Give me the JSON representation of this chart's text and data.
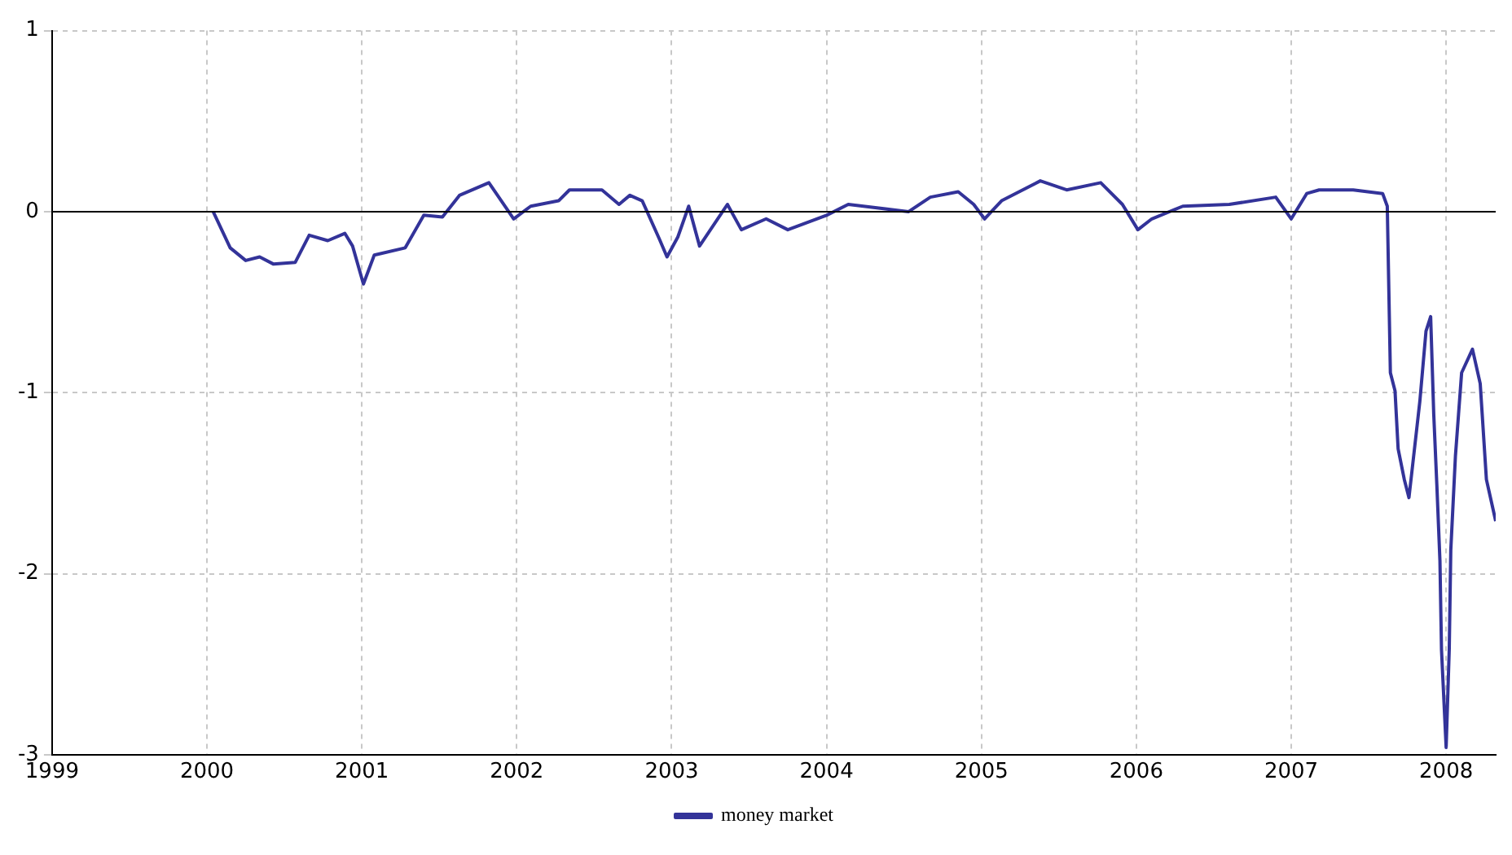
{
  "chart_data": {
    "type": "line",
    "xlim": [
      1999,
      2008.32
    ],
    "xticks": [
      1999,
      2000,
      2001,
      2002,
      2003,
      2004,
      2005,
      2006,
      2007,
      2008
    ],
    "ylim": [
      -3,
      1
    ],
    "yticks": [
      -3,
      -2,
      -1,
      0,
      1
    ],
    "grid": true,
    "legend": "bottom",
    "marker": "none",
    "line_style": "solid",
    "ref_lines": [
      {
        "axis": "y",
        "value": 0,
        "color": "#000000"
      }
    ],
    "series": [
      {
        "name": "money market",
        "color": "#333399",
        "x": [
          2000.04,
          2000.15,
          2000.25,
          2000.34,
          2000.43,
          2000.57,
          2000.66,
          2000.78,
          2000.89,
          2000.94,
          2001.01,
          2001.08,
          2001.28,
          2001.4,
          2001.52,
          2001.63,
          2001.82,
          2001.98,
          2002.09,
          2002.27,
          2002.34,
          2002.55,
          2002.66,
          2002.73,
          2002.81,
          2002.92,
          2002.97,
          2003.04,
          2003.11,
          2003.18,
          2003.36,
          2003.45,
          2003.61,
          2003.75,
          2004.0,
          2004.14,
          2004.53,
          2004.67,
          2004.85,
          2004.95,
          2005.02,
          2005.13,
          2005.38,
          2005.55,
          2005.77,
          2005.91,
          2006.01,
          2006.1,
          2006.3,
          2006.6,
          2006.9,
          2007.0,
          2007.1,
          2007.18,
          2007.4,
          2007.59,
          2007.62,
          2007.64,
          2007.67,
          2007.69,
          2007.73,
          2007.76,
          2007.83,
          2007.87,
          2007.9,
          2007.92,
          2007.94,
          2007.96,
          2007.97,
          2008.0,
          2008.02,
          2008.03,
          2008.06,
          2008.1,
          2008.17,
          2008.22,
          2008.26,
          2008.32
        ],
        "values": [
          0,
          -0.2,
          -0.27,
          -0.25,
          -0.29,
          -0.28,
          -0.13,
          -0.16,
          -0.12,
          -0.19,
          -0.4,
          -0.24,
          -0.2,
          -0.02,
          -0.03,
          0.09,
          0.16,
          -0.04,
          0.03,
          0.06,
          0.12,
          0.12,
          0.04,
          0.09,
          0.06,
          -0.15,
          -0.25,
          -0.14,
          0.03,
          -0.19,
          0.04,
          -0.1,
          -0.04,
          -0.1,
          -0.02,
          0.04,
          0,
          0.08,
          0.11,
          0.04,
          -0.04,
          0.06,
          0.17,
          0.12,
          0.16,
          0.04,
          -0.1,
          -0.04,
          0.03,
          0.04,
          0.08,
          -0.04,
          0.1,
          0.12,
          0.12,
          0.1,
          0.03,
          -0.89,
          -0.99,
          -1.31,
          -1.48,
          -1.58,
          -1.05,
          -0.66,
          -0.58,
          -1.12,
          -1.51,
          -1.93,
          -2.42,
          -2.96,
          -2.42,
          -1.87,
          -1.35,
          -0.89,
          -0.76,
          -0.95,
          -1.48,
          -1.71
        ]
      }
    ]
  }
}
